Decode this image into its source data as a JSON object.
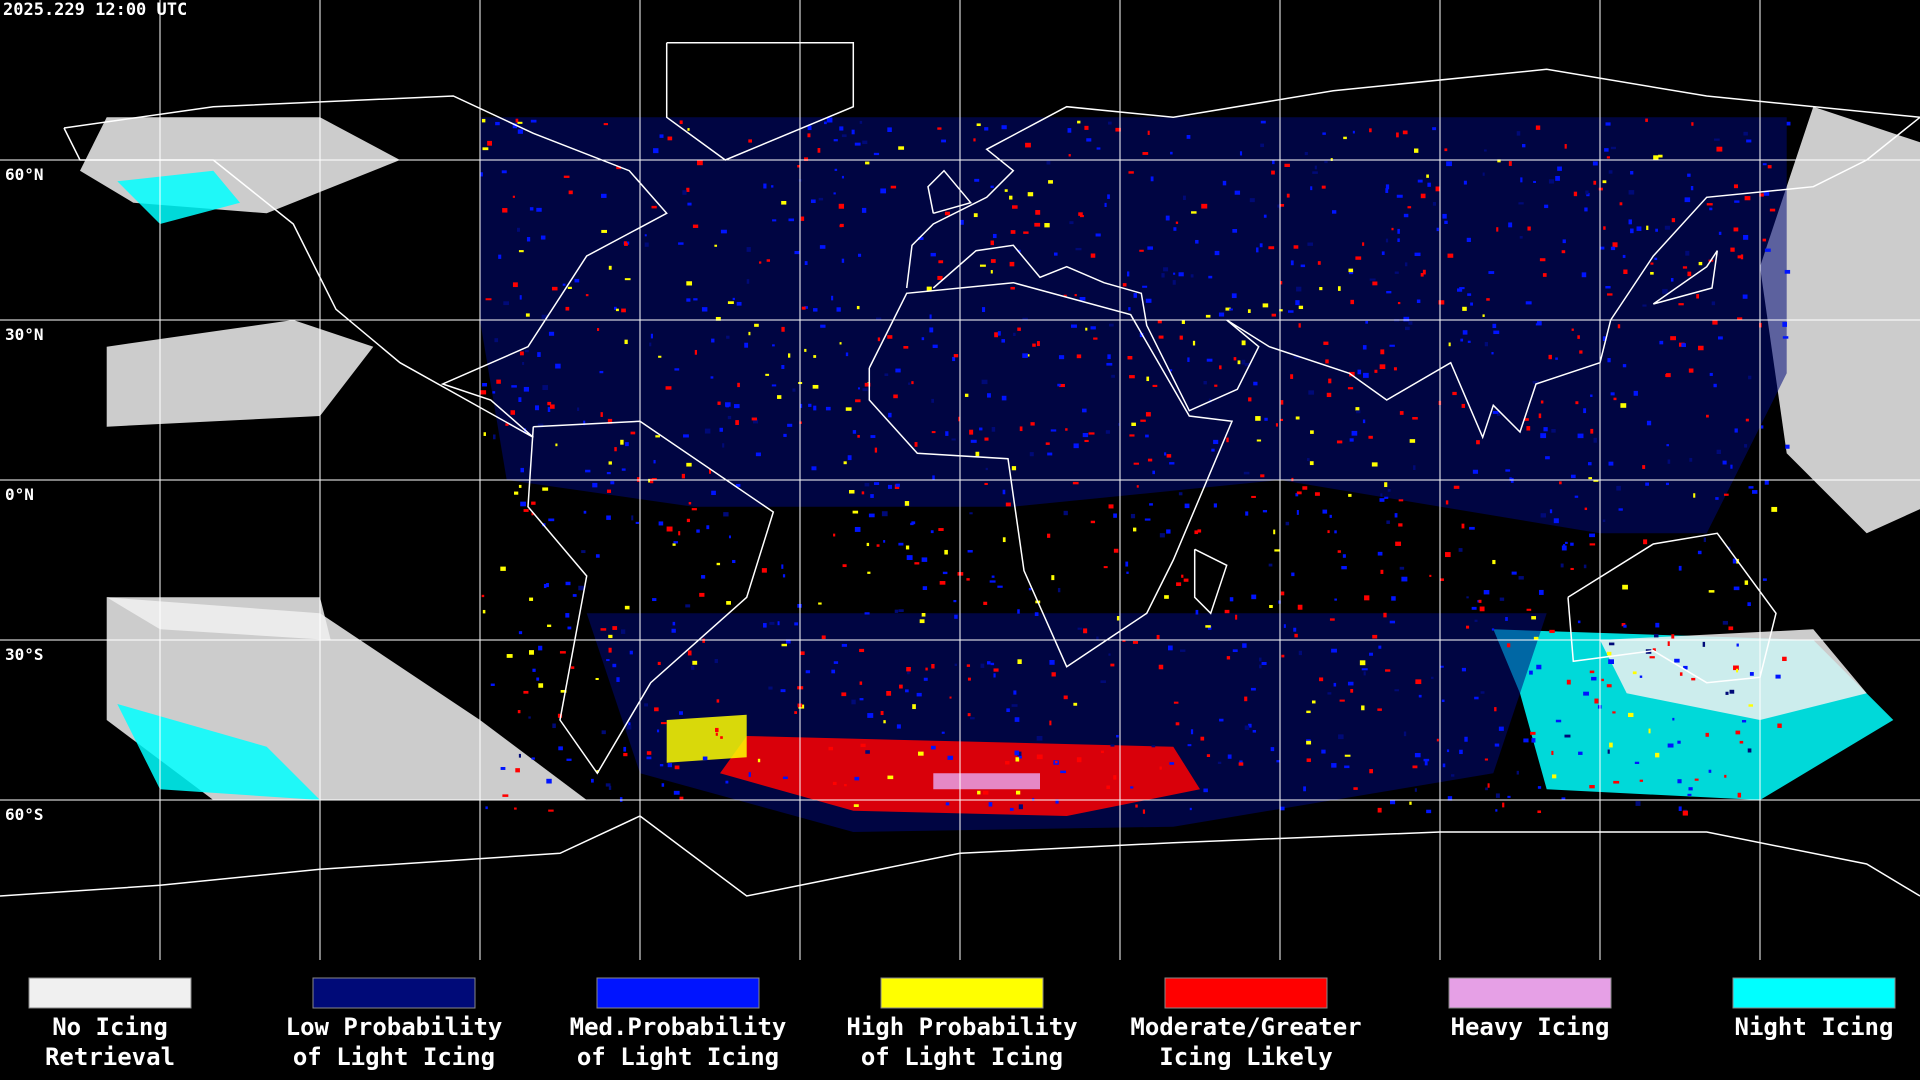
{
  "header": {
    "title": "2025.229 12:00 UTC"
  },
  "latitude_labels": [
    "60°N",
    "30°N",
    "0°N",
    "30°S",
    "60°S"
  ],
  "legend": [
    {
      "label": [
        "No Icing",
        "Retrieval"
      ],
      "color": "#f0f0f0"
    },
    {
      "label": [
        "Low Probability",
        "of Light Icing"
      ],
      "color": "#000a78"
    },
    {
      "label": [
        "Med.Probability",
        "of Light Icing"
      ],
      "color": "#0014ff"
    },
    {
      "label": [
        "High Probability",
        "of Light Icing"
      ],
      "color": "#ffff00"
    },
    {
      "label": [
        "Moderate/Greater",
        "Icing Likely"
      ],
      "color": "#ff0000"
    },
    {
      "label": [
        "Heavy Icing"
      ],
      "color": "#e6a0e6"
    },
    {
      "label": [
        "Night Icing"
      ],
      "color": "#00ffff"
    }
  ]
}
